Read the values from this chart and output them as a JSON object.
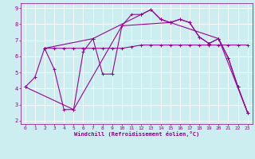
{
  "xlabel": "Windchill (Refroidissement éolien,°C)",
  "background_color": "#cceef0",
  "grid_color": "#ffffff",
  "line_color": "#990099",
  "xlim": [
    -0.5,
    23.5
  ],
  "ylim": [
    1.8,
    9.3
  ],
  "yticks": [
    2,
    3,
    4,
    5,
    6,
    7,
    8,
    9
  ],
  "xticks": [
    0,
    1,
    2,
    3,
    4,
    5,
    6,
    7,
    8,
    9,
    10,
    11,
    12,
    13,
    14,
    15,
    16,
    17,
    18,
    19,
    20,
    21,
    22,
    23
  ],
  "lines": [
    {
      "x": [
        0,
        1,
        2,
        3,
        4,
        5,
        6,
        7,
        8,
        9,
        10,
        11,
        12,
        13,
        14,
        15,
        16,
        17,
        18,
        19,
        20,
        21,
        22,
        23
      ],
      "y": [
        4.1,
        4.7,
        6.5,
        5.2,
        2.7,
        2.7,
        6.3,
        7.1,
        4.9,
        4.9,
        7.9,
        8.6,
        8.6,
        8.9,
        8.3,
        8.1,
        8.3,
        8.1,
        7.2,
        6.8,
        7.1,
        5.9,
        4.1,
        2.5
      ]
    },
    {
      "x": [
        2,
        3,
        4,
        5,
        6,
        7,
        8,
        9,
        10,
        11,
        12,
        13,
        14,
        15,
        16,
        17,
        18,
        19,
        20,
        21,
        22,
        23
      ],
      "y": [
        6.5,
        6.5,
        6.5,
        6.5,
        6.5,
        6.5,
        6.5,
        6.5,
        6.5,
        6.6,
        6.7,
        6.7,
        6.7,
        6.7,
        6.7,
        6.7,
        6.7,
        6.7,
        6.7,
        6.7,
        6.7,
        6.7
      ]
    },
    {
      "x": [
        0,
        5,
        10,
        15,
        20,
        23
      ],
      "y": [
        4.1,
        2.7,
        7.9,
        8.1,
        7.1,
        2.5
      ]
    },
    {
      "x": [
        2,
        7,
        12,
        13,
        14,
        15,
        16,
        17,
        18,
        19,
        20,
        21,
        22,
        23
      ],
      "y": [
        6.5,
        7.1,
        8.6,
        8.9,
        8.3,
        8.1,
        8.3,
        8.1,
        7.2,
        6.8,
        7.1,
        5.9,
        4.1,
        2.5
      ]
    }
  ]
}
